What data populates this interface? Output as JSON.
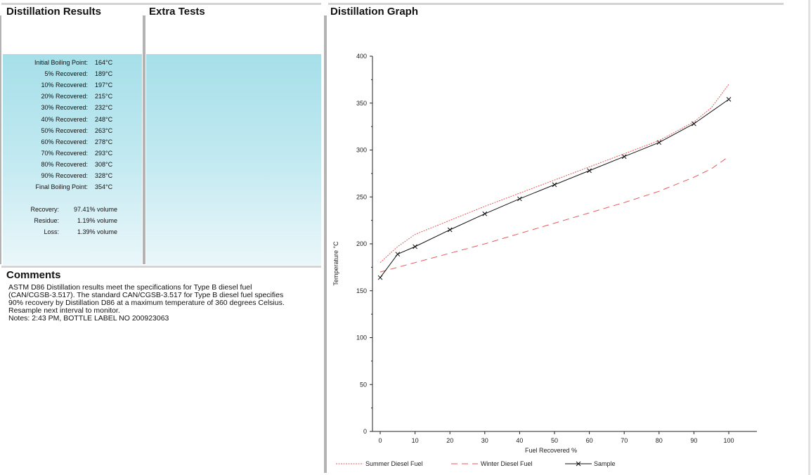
{
  "sections": {
    "distillation_results": "Distillation Results",
    "extra_tests": "Extra Tests",
    "distillation_graph": "Distillation Graph",
    "comments": "Comments"
  },
  "results": [
    {
      "label": "Initial Boiling Point:",
      "value": "164°C"
    },
    {
      "label": "5% Recovered:",
      "value": "189°C"
    },
    {
      "label": "10% Recovered:",
      "value": "197°C"
    },
    {
      "label": "20% Recovered:",
      "value": "215°C"
    },
    {
      "label": "30% Recovered:",
      "value": "232°C"
    },
    {
      "label": "40% Recovered:",
      "value": "248°C"
    },
    {
      "label": "50% Recovered:",
      "value": "263°C"
    },
    {
      "label": "60% Recovered:",
      "value": "278°C"
    },
    {
      "label": "70% Recovered:",
      "value": "293°C"
    },
    {
      "label": "80% Recovered:",
      "value": "308°C"
    },
    {
      "label": "90% Recovered:",
      "value": "328°C"
    },
    {
      "label": "Final Boiling Point:",
      "value": "354°C"
    }
  ],
  "summary": [
    {
      "label": "Recovery:",
      "value": "97.41% volume"
    },
    {
      "label": "Residue:",
      "value": "1.19% volume"
    },
    {
      "label": "Loss:",
      "value": "1.39% volume"
    }
  ],
  "comments": {
    "lines": [
      "ASTM D86 Distillation results meet the specifications for Type B diesel fuel",
      "(CAN/CGSB-3.517). The standard CAN/CGSB-3.517 for Type B diesel fuel specifies",
      "90% recovery by Distillation D86 at a maximum temperature of 360 degrees Celsius.",
      "Resample next interval to monitor.",
      "Notes: 2:43 PM, BOTTLE LABEL NO 200923063"
    ]
  },
  "chart_data": {
    "type": "line",
    "title": "",
    "xlabel": "Fuel Recovered %",
    "ylabel": "Temperature °C",
    "xlim": [
      0,
      100
    ],
    "ylim": [
      0,
      400
    ],
    "xticks": [
      0,
      10,
      20,
      30,
      40,
      50,
      60,
      70,
      80,
      90,
      100
    ],
    "yticks": [
      0,
      50,
      100,
      150,
      200,
      250,
      300,
      350,
      400
    ],
    "legend_position": "bottom",
    "series": [
      {
        "name": "Summer Diesel Fuel",
        "style": "dotted",
        "color": "#e8595f",
        "x": [
          0,
          5,
          10,
          20,
          30,
          40,
          50,
          60,
          70,
          80,
          90,
          95,
          100
        ],
        "y": [
          180,
          197,
          210,
          225,
          240,
          254,
          268,
          282,
          296,
          310,
          330,
          345,
          370
        ]
      },
      {
        "name": "Winter Diesel Fuel",
        "style": "dashed",
        "color": "#e8595f",
        "x": [
          0,
          5,
          10,
          20,
          30,
          40,
          50,
          60,
          70,
          80,
          90,
          95,
          100
        ],
        "y": [
          170,
          175,
          180,
          190,
          200,
          211,
          222,
          233,
          244,
          256,
          271,
          280,
          293
        ]
      },
      {
        "name": "Sample",
        "style": "solid",
        "color": "#111111",
        "marker": "x",
        "x": [
          0,
          5,
          10,
          20,
          30,
          40,
          50,
          60,
          70,
          80,
          90,
          100
        ],
        "y": [
          164,
          189,
          197,
          215,
          232,
          248,
          263,
          278,
          293,
          308,
          328,
          354
        ]
      }
    ]
  }
}
